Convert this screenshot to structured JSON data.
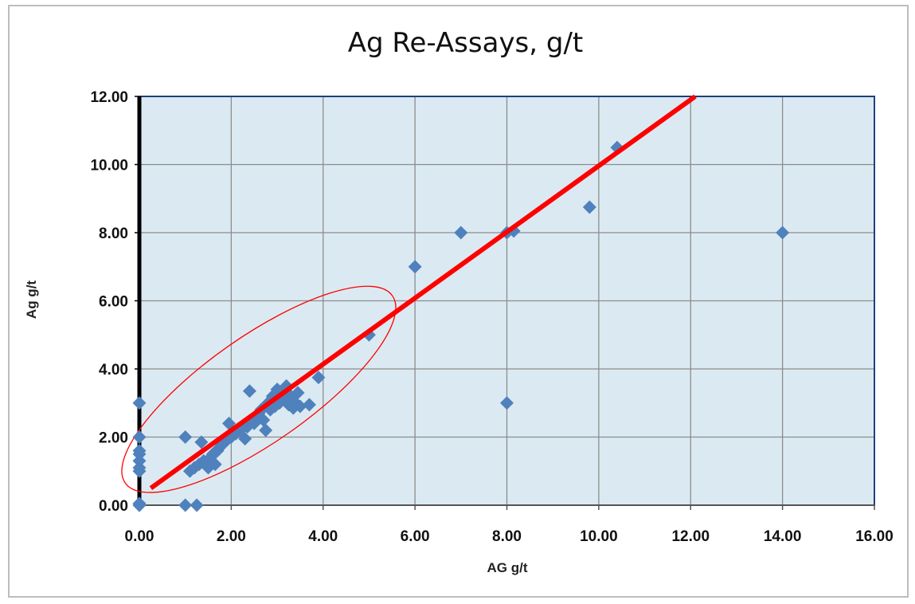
{
  "chart_data": {
    "type": "scatter",
    "title": "Ag Re-Assays, g/t",
    "xlabel": "AG g/t",
    "ylabel": "Ag g/t",
    "xlim": [
      0,
      16
    ],
    "ylim": [
      0,
      12
    ],
    "x_ticks": [
      "0.00",
      "2.00",
      "4.00",
      "6.00",
      "8.00",
      "10.00",
      "12.00",
      "14.00",
      "16.00"
    ],
    "y_ticks": [
      "0.00",
      "2.00",
      "4.00",
      "6.00",
      "8.00",
      "10.00",
      "12.00"
    ],
    "grid": true,
    "legend": "none",
    "colors": {
      "plot_background": "#dbeaf2",
      "marker": "#4f81bd",
      "trendline": "#ff0000",
      "ellipse": "#ff0000",
      "grid": "#8c8c8c",
      "frame": "#1f3f7a"
    },
    "points": [
      [
        0,
        0
      ],
      [
        0,
        0
      ],
      [
        0,
        0.05
      ],
      [
        0,
        1.0
      ],
      [
        0,
        1.1
      ],
      [
        0,
        1.3
      ],
      [
        0,
        1.5
      ],
      [
        0,
        1.6
      ],
      [
        0,
        2.0
      ],
      [
        0,
        3.0
      ],
      [
        1.0,
        0
      ],
      [
        1.25,
        0
      ],
      [
        1.0,
        2.0
      ],
      [
        1.1,
        1.0
      ],
      [
        1.2,
        1.1
      ],
      [
        1.3,
        1.2
      ],
      [
        1.35,
        1.85
      ],
      [
        1.4,
        1.3
      ],
      [
        1.5,
        1.1
      ],
      [
        1.55,
        1.4
      ],
      [
        1.6,
        1.5
      ],
      [
        1.65,
        1.2
      ],
      [
        1.7,
        1.6
      ],
      [
        1.75,
        1.7
      ],
      [
        1.8,
        1.8
      ],
      [
        1.9,
        1.9
      ],
      [
        1.95,
        2.4
      ],
      [
        2.0,
        2.0
      ],
      [
        2.1,
        2.1
      ],
      [
        2.2,
        2.2
      ],
      [
        2.3,
        1.95
      ],
      [
        2.35,
        2.3
      ],
      [
        2.4,
        3.35
      ],
      [
        2.45,
        2.5
      ],
      [
        2.5,
        2.4
      ],
      [
        2.55,
        2.6
      ],
      [
        2.6,
        2.7
      ],
      [
        2.65,
        2.8
      ],
      [
        2.7,
        2.5
      ],
      [
        2.75,
        2.2
      ],
      [
        2.8,
        3.0
      ],
      [
        2.85,
        2.8
      ],
      [
        2.9,
        3.2
      ],
      [
        2.95,
        2.9
      ],
      [
        3.0,
        3.4
      ],
      [
        3.05,
        3.0
      ],
      [
        3.1,
        3.3
      ],
      [
        3.15,
        3.1
      ],
      [
        3.2,
        3.5
      ],
      [
        3.25,
        2.95
      ],
      [
        3.3,
        3.2
      ],
      [
        3.35,
        2.85
      ],
      [
        3.4,
        3.0
      ],
      [
        3.45,
        3.3
      ],
      [
        3.5,
        2.9
      ],
      [
        3.7,
        2.95
      ],
      [
        3.9,
        3.75
      ],
      [
        5.0,
        5.0
      ],
      [
        6.0,
        7.0
      ],
      [
        7.0,
        8.0
      ],
      [
        8.0,
        3.0
      ],
      [
        8.0,
        8.0
      ],
      [
        8.15,
        8.05
      ],
      [
        9.8,
        8.75
      ],
      [
        10.4,
        10.5
      ],
      [
        14.0,
        8.0
      ]
    ],
    "trendline": {
      "x": [
        0.25,
        12.1
      ],
      "y": [
        0.5,
        12.0
      ]
    },
    "annotation_ellipse": {
      "center": [
        2.6,
        3.4
      ],
      "semi_axes": [
        3.55,
        1.15
      ],
      "angle_deg": 35
    }
  }
}
